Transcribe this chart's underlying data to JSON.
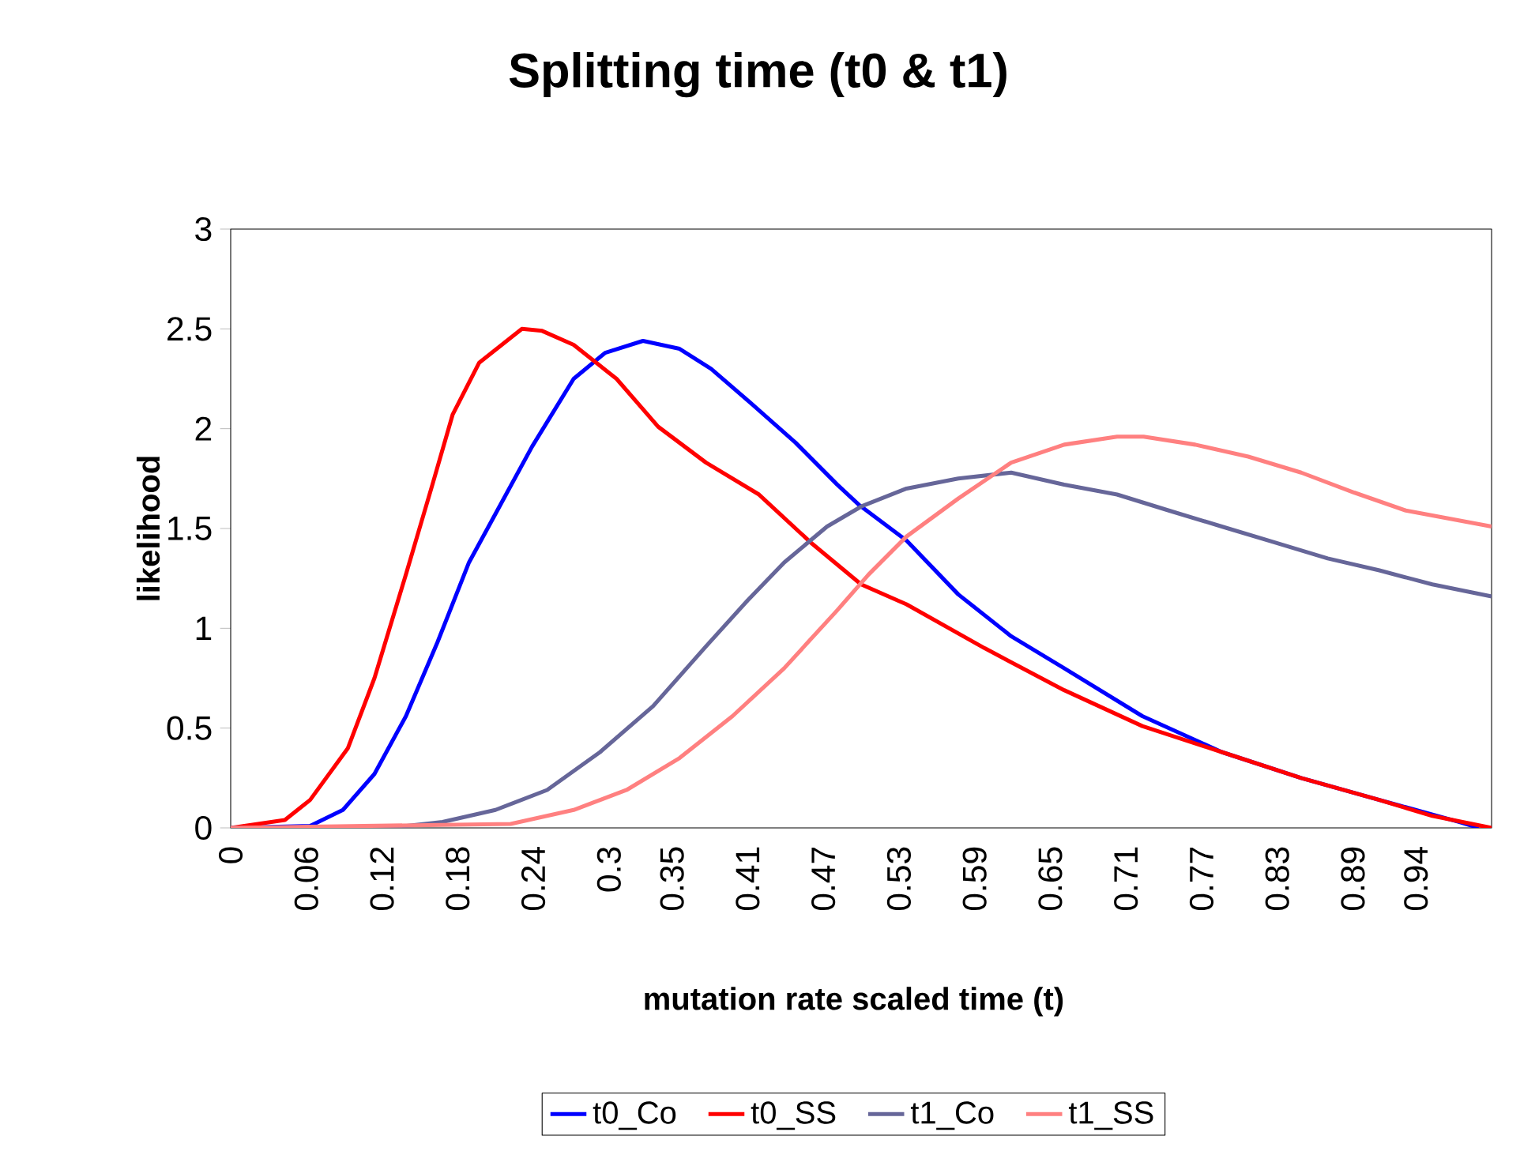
{
  "chart_data": {
    "type": "line",
    "title": "Splitting time  (t0 & t1)",
    "xlabel": "mutation rate scaled time (t)",
    "ylabel": "likelihood",
    "xlim": [
      0,
      1
    ],
    "ylim": [
      0,
      3
    ],
    "yticks": [
      0,
      0.5,
      1,
      1.5,
      2,
      2.5,
      3
    ],
    "xticks": [
      0,
      0.06,
      0.12,
      0.18,
      0.24,
      0.3,
      0.35,
      0.41,
      0.47,
      0.53,
      0.59,
      0.65,
      0.71,
      0.77,
      0.83,
      0.89,
      0.94
    ],
    "legend": "bottom",
    "grid": false,
    "marker": "none",
    "line_style": "solid",
    "series": [
      {
        "name": "t0_Co",
        "color": "#0000ff",
        "x": [
          0,
          0.063,
          0.089,
          0.114,
          0.139,
          0.164,
          0.189,
          0.214,
          0.239,
          0.272,
          0.297,
          0.327,
          0.356,
          0.381,
          0.414,
          0.448,
          0.481,
          0.498,
          0.536,
          0.577,
          0.619,
          0.661,
          0.723,
          0.786,
          0.849,
          0.911,
          0.974,
          0.99
        ],
        "values": [
          0,
          0.01,
          0.09,
          0.27,
          0.56,
          0.93,
          1.33,
          1.62,
          1.91,
          2.25,
          2.38,
          2.44,
          2.4,
          2.3,
          2.12,
          1.93,
          1.72,
          1.62,
          1.44,
          1.17,
          0.96,
          0.8,
          0.56,
          0.38,
          0.25,
          0.14,
          0.03,
          0
        ]
      },
      {
        "name": "t0_SS",
        "color": "#ff0000",
        "x": [
          0,
          0.043,
          0.063,
          0.093,
          0.114,
          0.139,
          0.16,
          0.176,
          0.197,
          0.231,
          0.247,
          0.272,
          0.306,
          0.339,
          0.377,
          0.419,
          0.46,
          0.5,
          0.536,
          0.598,
          0.661,
          0.723,
          0.786,
          0.849,
          0.911,
          0.953,
          1
        ],
        "values": [
          0,
          0.04,
          0.14,
          0.4,
          0.75,
          1.27,
          1.72,
          2.07,
          2.33,
          2.5,
          2.49,
          2.42,
          2.25,
          2.01,
          1.83,
          1.67,
          1.43,
          1.22,
          1.12,
          0.9,
          0.69,
          0.51,
          0.38,
          0.25,
          0.14,
          0.06,
          0
        ]
      },
      {
        "name": "t1_Co",
        "color": "#666699",
        "x": [
          0,
          0.126,
          0.168,
          0.21,
          0.251,
          0.293,
          0.335,
          0.377,
          0.41,
          0.439,
          0.473,
          0.5,
          0.536,
          0.577,
          0.619,
          0.661,
          0.703,
          0.744,
          0.786,
          0.828,
          0.87,
          0.911,
          0.953,
          1
        ],
        "values": [
          0,
          0,
          0.03,
          0.09,
          0.19,
          0.38,
          0.61,
          0.91,
          1.14,
          1.33,
          1.51,
          1.61,
          1.7,
          1.75,
          1.78,
          1.72,
          1.67,
          1.59,
          1.51,
          1.43,
          1.35,
          1.29,
          1.22,
          1.16
        ]
      },
      {
        "name": "t1_SS",
        "color": "#ff8080",
        "x": [
          0,
          0.222,
          0.272,
          0.314,
          0.356,
          0.398,
          0.439,
          0.481,
          0.506,
          0.536,
          0.577,
          0.619,
          0.661,
          0.703,
          0.724,
          0.765,
          0.807,
          0.849,
          0.891,
          0.932,
          1
        ],
        "values": [
          0,
          0.02,
          0.09,
          0.19,
          0.35,
          0.56,
          0.8,
          1.09,
          1.27,
          1.46,
          1.65,
          1.83,
          1.92,
          1.96,
          1.96,
          1.92,
          1.86,
          1.78,
          1.68,
          1.59,
          1.51
        ]
      }
    ]
  }
}
